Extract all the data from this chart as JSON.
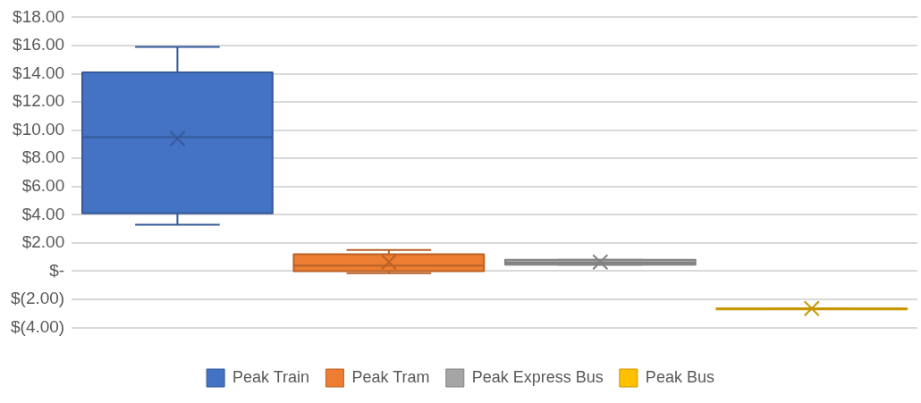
{
  "chart_data": {
    "type": "box",
    "categories": [
      null,
      null,
      null,
      null
    ],
    "series": [
      {
        "name": "Peak Train",
        "color": "#4472c4",
        "boxes": [
          {
            "low": 3.3,
            "q1": 4.1,
            "median": 9.5,
            "q3": 14.1,
            "high": 15.9,
            "mean": 9.4
          },
          null,
          null,
          null
        ]
      },
      {
        "name": "Peak Tram",
        "color": "#ed7d31",
        "boxes": [
          null,
          {
            "low": -0.15,
            "q1": 0,
            "median": 0.4,
            "q3": 1.2,
            "high": 1.5,
            "mean": 0.65
          },
          null,
          null
        ]
      },
      {
        "name": "Peak Express Bus",
        "color": "#a5a5a5",
        "boxes": [
          null,
          null,
          {
            "low": 0.45,
            "q1": 0.45,
            "median": 0.6,
            "q3": 0.8,
            "high": 0.8,
            "mean": 0.65
          },
          null
        ]
      },
      {
        "name": "Peak Bus",
        "color": "#ffc000",
        "boxes": [
          null,
          null,
          null,
          {
            "low": -2.65,
            "q1": -2.65,
            "median": -2.65,
            "q3": -2.65,
            "high": -2.65,
            "mean": -2.65
          }
        ]
      }
    ],
    "ylim": [
      -4,
      18
    ],
    "yticks": [
      {
        "value": 18,
        "label": "$18.00"
      },
      {
        "value": 16,
        "label": "$16.00"
      },
      {
        "value": 14,
        "label": "$14.00"
      },
      {
        "value": 12,
        "label": "$12.00"
      },
      {
        "value": 10,
        "label": "$10.00"
      },
      {
        "value": 8,
        "label": "$8.00"
      },
      {
        "value": 6,
        "label": "$6.00"
      },
      {
        "value": 4,
        "label": "$4.00"
      },
      {
        "value": 2,
        "label": "$2.00"
      },
      {
        "value": 0,
        "label": "$-"
      },
      {
        "value": -2,
        "label": "$(2.00)"
      },
      {
        "value": -4,
        "label": "$(4.00)"
      }
    ],
    "grid": "y",
    "legend": "bottom",
    "marker": "cross"
  }
}
